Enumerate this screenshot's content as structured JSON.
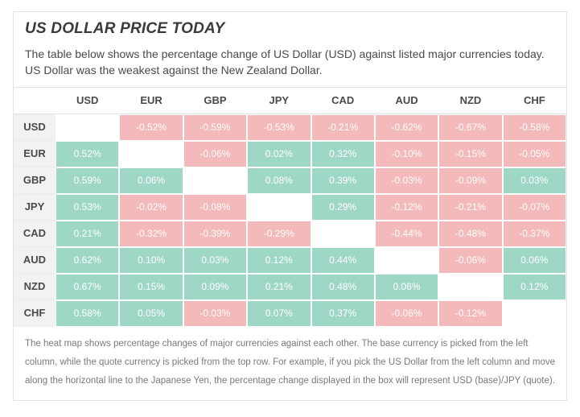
{
  "title": "US DOLLAR PRICE TODAY",
  "intro": "The table below shows the percentage change of US Dollar (USD) against listed major currencies today. US Dollar was the weakest against the New Zealand Dollar.",
  "footnote": "The heat map shows percentage changes of major currencies against each other. The base currency is picked from the left column, while the quote currency is picked from the top row. For example, if you pick the US Dollar from the left column and move along the horizontal line to the Japanese Yen, the percentage change displayed in the box will represent USD (base)/JPY (quote).",
  "heatmap": {
    "type": "heatmap",
    "columns": [
      "USD",
      "EUR",
      "GBP",
      "JPY",
      "CAD",
      "AUD",
      "NZD",
      "CHF"
    ],
    "rows": [
      "USD",
      "EUR",
      "GBP",
      "JPY",
      "CAD",
      "AUD",
      "NZD",
      "CHF"
    ],
    "values": [
      [
        null,
        -0.52,
        -0.59,
        -0.53,
        -0.21,
        -0.62,
        -0.67,
        -0.58
      ],
      [
        0.52,
        null,
        -0.06,
        0.02,
        0.32,
        -0.1,
        -0.15,
        -0.05
      ],
      [
        0.59,
        0.06,
        null,
        0.08,
        0.39,
        -0.03,
        -0.09,
        0.03
      ],
      [
        0.53,
        -0.02,
        -0.08,
        null,
        0.29,
        -0.12,
        -0.21,
        -0.07
      ],
      [
        0.21,
        -0.32,
        -0.39,
        -0.29,
        null,
        -0.44,
        -0.48,
        -0.37
      ],
      [
        0.62,
        0.1,
        0.03,
        0.12,
        0.44,
        null,
        -0.06,
        0.06
      ],
      [
        0.67,
        0.15,
        0.09,
        0.21,
        0.48,
        0.06,
        null,
        0.12
      ],
      [
        0.58,
        0.05,
        -0.03,
        0.07,
        0.37,
        -0.06,
        -0.12,
        null
      ]
    ],
    "positive_color": "#9fd7c6",
    "negative_color": "#f3b9bb",
    "diagonal_color": "#ffffff",
    "cell_text_color": "#ffffff",
    "header_bg": "#ffffff",
    "row_header_bg": "#f2f2f2",
    "header_text_color": "#4a4a4a",
    "grid_border_color": "#e3e3e3",
    "value_suffix": "%",
    "value_decimals": 2,
    "font_family": "Arial",
    "title_fontsize": 19,
    "intro_fontsize": 14,
    "header_fontsize": 13,
    "cell_fontsize": 12,
    "foot_fontsize": 11.5
  }
}
